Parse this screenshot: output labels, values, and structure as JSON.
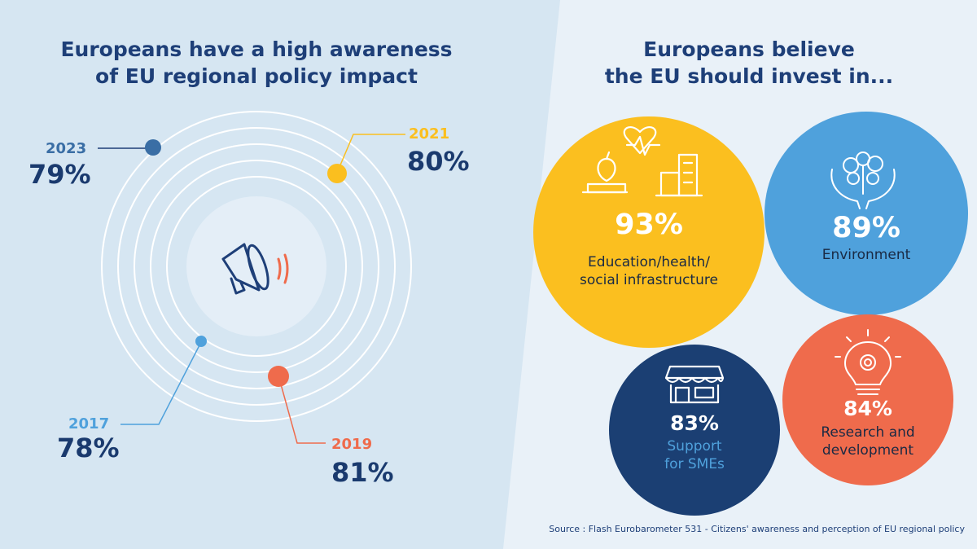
{
  "colors": {
    "navy": "#1a3a6e",
    "yellow": "#fbbf1f",
    "light_blue": "#4fa1dc",
    "dark_blue": "#1b3f73",
    "orange": "#ef6b4c",
    "panel_left": "#d6e6f2",
    "panel_right": "#e9f1f8"
  },
  "awareness": {
    "title_line1": "Europeans have a high awareness",
    "title_line2": "of EU regional policy impact",
    "center_icon": "megaphone-icon"
  },
  "investment": {
    "title_line1": "Europeans believe",
    "title_line2": "the EU should invest in..."
  },
  "chart_data": [
    {
      "type": "radial",
      "title": "Europeans have a high awareness of EU regional policy impact",
      "points": [
        {
          "year": "2023",
          "value": 79,
          "label": "79%",
          "color": "#3a6ea5"
        },
        {
          "year": "2021",
          "value": 80,
          "label": "80%",
          "color": "#fbbf1f"
        },
        {
          "year": "2017",
          "value": 78,
          "label": "78%",
          "color": "#4fa1dc"
        },
        {
          "year": "2019",
          "value": 81,
          "label": "81%",
          "color": "#ef6b4c"
        }
      ]
    },
    {
      "type": "bubble",
      "title": "Europeans believe the EU should invest in...",
      "items": [
        {
          "category": "Education/health/ social infrastructure",
          "line1": "Education/health/",
          "line2": "social infrastructure",
          "value": 93,
          "label": "93%",
          "color": "#fbbf1f",
          "icon": "education-health-icon"
        },
        {
          "category": "Environment",
          "line1": "Environment",
          "line2": "",
          "value": 89,
          "label": "89%",
          "color": "#4fa1dc",
          "icon": "environment-hands-icon"
        },
        {
          "category": "Support for SMEs",
          "line1": "Support",
          "line2": "for SMEs",
          "value": 83,
          "label": "83%",
          "color": "#1b3f73",
          "icon": "storefront-icon"
        },
        {
          "category": "Research and development",
          "line1": "Research and",
          "line2": "development",
          "value": 84,
          "label": "84%",
          "color": "#ef6b4c",
          "icon": "lightbulb-gear-icon"
        }
      ]
    }
  ],
  "source": "Source : Flash Eurobarometer 531 - Citizens' awareness and perception of EU regional policy"
}
